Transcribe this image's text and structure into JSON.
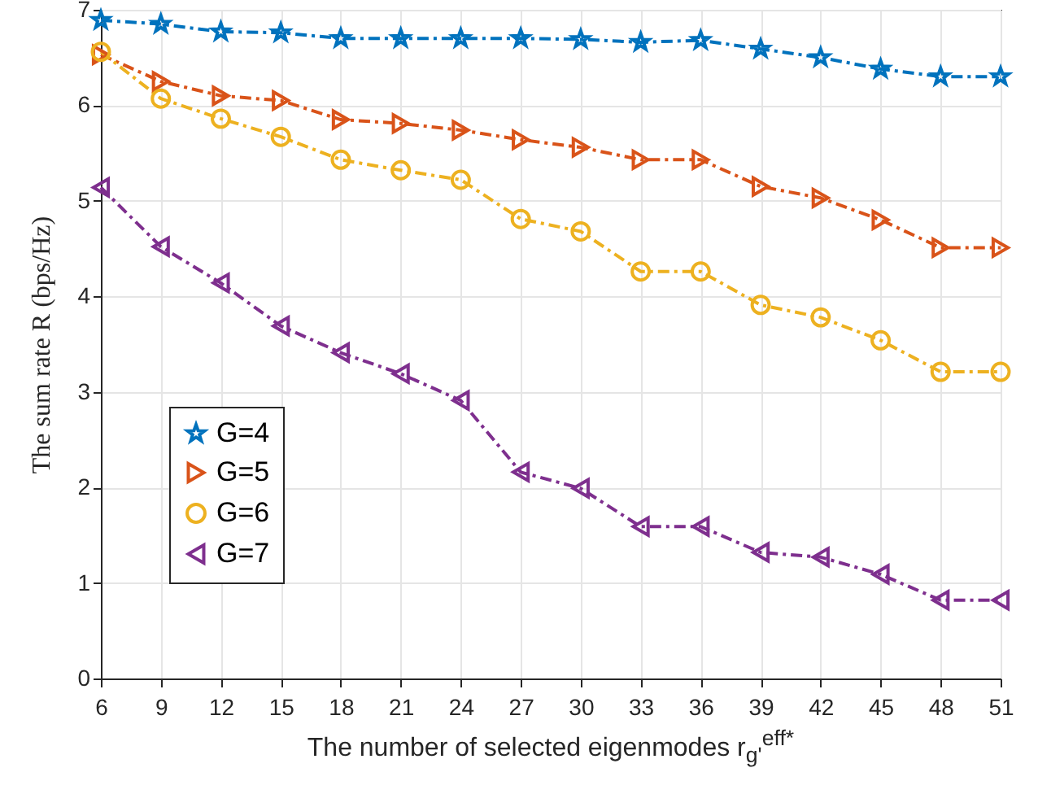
{
  "chart_data": {
    "type": "line",
    "xlabel": "The number of selected eigenmodes r$_{g'}$$^{eff*}$",
    "ylabel": "The sum rate R (bps/Hz)",
    "x": [
      6,
      9,
      12,
      15,
      18,
      21,
      24,
      27,
      30,
      33,
      36,
      39,
      42,
      45,
      48,
      51
    ],
    "xlim": [
      6,
      51
    ],
    "xticks": [
      6,
      9,
      12,
      15,
      18,
      21,
      24,
      27,
      30,
      33,
      36,
      39,
      42,
      45,
      48,
      51
    ],
    "ylim": [
      0,
      7
    ],
    "yticks": [
      0,
      1,
      2,
      3,
      4,
      5,
      6,
      7
    ],
    "grid": true,
    "legend": "left",
    "line_style": "dashed",
    "series": [
      {
        "name": "G=4",
        "color": "#0072bd",
        "marker": "star",
        "values": [
          6.89,
          6.85,
          6.77,
          6.76,
          6.7,
          6.7,
          6.7,
          6.7,
          6.69,
          6.66,
          6.68,
          6.59,
          6.5,
          6.38,
          6.3,
          6.3
        ]
      },
      {
        "name": "G=5",
        "color": "#d95319",
        "marker": "triangle",
        "values": [
          6.53,
          6.25,
          6.1,
          6.05,
          5.85,
          5.81,
          5.74,
          5.64,
          5.56,
          5.43,
          5.43,
          5.15,
          5.03,
          4.8,
          4.51,
          4.51
        ]
      },
      {
        "name": "G=6",
        "color": "#edb120",
        "marker": "circle",
        "values": [
          6.56,
          6.07,
          5.86,
          5.67,
          5.43,
          5.32,
          5.22,
          4.81,
          4.68,
          4.26,
          4.26,
          3.91,
          3.78,
          3.54,
          3.21,
          3.21
        ]
      },
      {
        "name": "G=7",
        "color": "#7e2f8e",
        "marker": "triangle",
        "values": [
          5.14,
          4.52,
          4.14,
          3.69,
          3.41,
          3.19,
          2.91,
          2.16,
          1.99,
          1.59,
          1.59,
          1.32,
          1.27,
          1.09,
          0.82,
          0.82
        ]
      }
    ]
  }
}
